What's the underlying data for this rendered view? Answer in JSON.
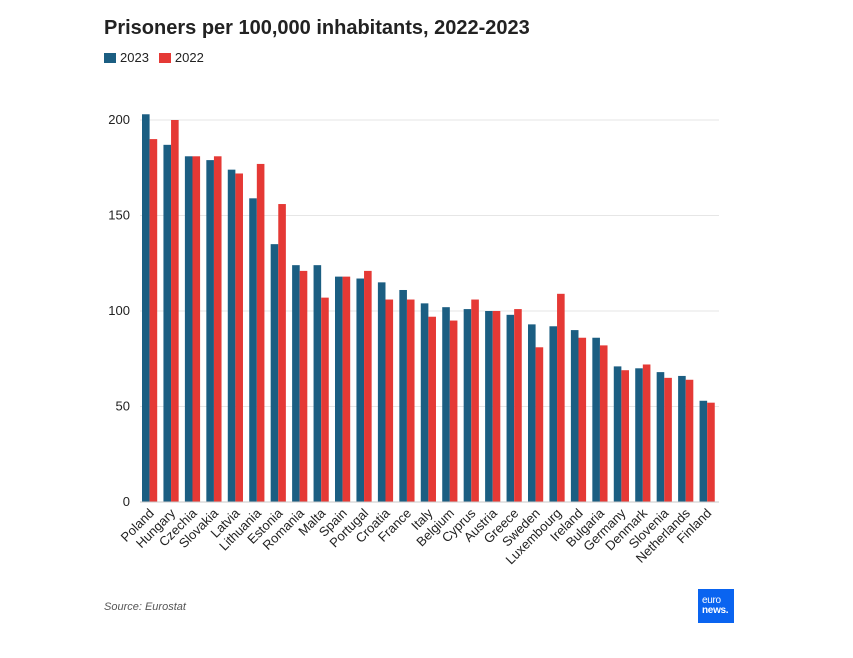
{
  "header": {
    "title": "Prisoners per 100,000 inhabitants, 2022-2023"
  },
  "legend": [
    {
      "label": "2023",
      "color": "#1b5e82"
    },
    {
      "label": "2022",
      "color": "#e53935"
    }
  ],
  "footer": {
    "source": "Source: Eurostat"
  },
  "logo": {
    "line1": "euro",
    "line2": "news."
  },
  "chart_data": {
    "type": "bar",
    "title": "Prisoners per 100,000 inhabitants, 2022-2023",
    "xlabel": "",
    "ylabel": "",
    "ylim": [
      0,
      220
    ],
    "yticks": [
      0,
      50,
      100,
      150,
      200
    ],
    "grid": true,
    "legend_position": "top-left",
    "categories": [
      "Poland",
      "Hungary",
      "Czechia",
      "Slovakia",
      "Latvia",
      "Lithuania",
      "Estonia",
      "Romania",
      "Malta",
      "Spain",
      "Portugal",
      "Croatia",
      "France",
      "Italy",
      "Belgium",
      "Cyprus",
      "Austria",
      "Greece",
      "Sweden",
      "Luxembourg",
      "Ireland",
      "Bulgaria",
      "Germany",
      "Denmark",
      "Slovenia",
      "Netherlands",
      "Finland"
    ],
    "series": [
      {
        "name": "2023",
        "color": "#1b5e82",
        "values": [
          203,
          187,
          181,
          179,
          174,
          159,
          135,
          124,
          124,
          118,
          117,
          115,
          111,
          104,
          102,
          101,
          100,
          98,
          93,
          92,
          90,
          86,
          71,
          70,
          68,
          66,
          53
        ]
      },
      {
        "name": "2022",
        "color": "#e53935",
        "values": [
          190,
          200,
          181,
          181,
          172,
          177,
          156,
          121,
          107,
          118,
          121,
          106,
          106,
          97,
          95,
          106,
          100,
          101,
          81,
          109,
          86,
          82,
          69,
          72,
          65,
          64,
          52
        ]
      }
    ]
  }
}
